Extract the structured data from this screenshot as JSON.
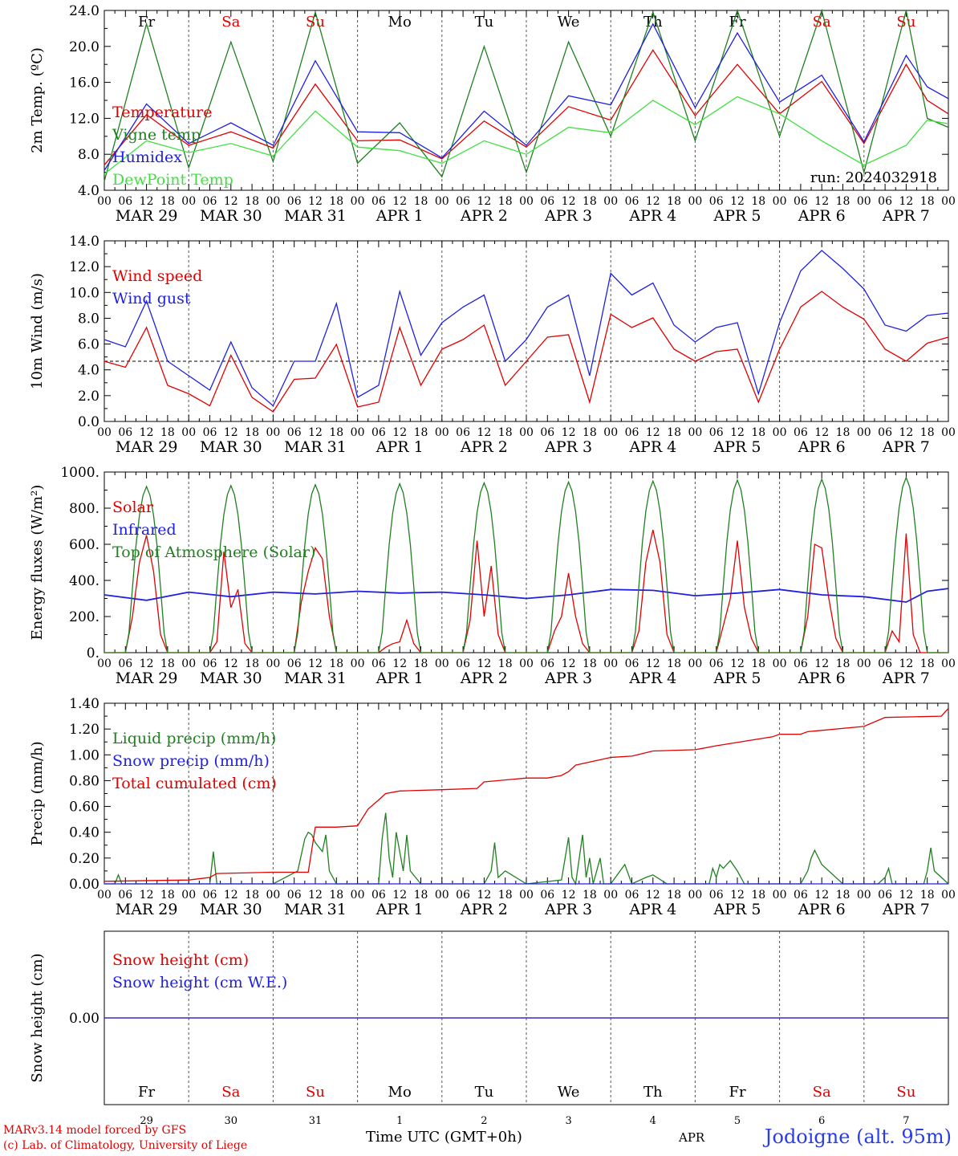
{
  "chart_data": [
    {
      "id": "temp",
      "type": "line",
      "ylabel": "2m Temp. (ºC)",
      "ylim": [
        4.0,
        24.0
      ],
      "yticks": [
        "4.0",
        "8.0",
        "12.0",
        "16.0",
        "20.0",
        "24.0"
      ],
      "x_hours_labels": [
        "00",
        "06",
        "12",
        "18"
      ],
      "date_labels": [
        "MAR 29",
        "MAR 30",
        "MAR 31",
        "APR 1",
        "APR 2",
        "APR 3",
        "APR 4",
        "APR 5",
        "APR 6",
        "APR 7"
      ],
      "days": [
        "Fr",
        "Sa",
        "Su",
        "Mo",
        "Tu",
        "We",
        "Th",
        "Fr",
        "Sa",
        "Su"
      ],
      "annotation": "run: 2024032918",
      "reference_line": null,
      "series": [
        {
          "name": "Temperature",
          "color": "#e00000",
          "x": [
            0,
            12,
            24,
            36,
            48,
            60,
            72,
            84,
            96,
            108,
            120,
            132,
            144,
            156,
            168,
            180,
            192,
            204,
            216,
            228,
            234,
            240
          ],
          "y": [
            6.8,
            12.4,
            9.0,
            10.5,
            8.7,
            15.8,
            9.5,
            9.6,
            7.5,
            11.7,
            8.8,
            13.3,
            11.8,
            19.6,
            12.3,
            18.0,
            12.5,
            16.1,
            9.2,
            18.0,
            14.0,
            12.5
          ]
        },
        {
          "name": "Vigne temp",
          "color": "#208020",
          "x": [
            0,
            12,
            24,
            36,
            48,
            60,
            72,
            84,
            96,
            108,
            120,
            132,
            144,
            156,
            168,
            180,
            192,
            204,
            216,
            228,
            234,
            240
          ],
          "y": [
            5.0,
            22.5,
            6.5,
            20.5,
            7.2,
            23.8,
            7.0,
            11.5,
            5.5,
            20.0,
            6.0,
            20.5,
            10.0,
            23.8,
            9.5,
            24.0,
            10.0,
            24.0,
            6.0,
            24.0,
            12.0,
            11.0
          ]
        },
        {
          "name": "Humidex",
          "color": "#2020e0",
          "x": [
            0,
            12,
            24,
            36,
            48,
            60,
            72,
            84,
            96,
            108,
            120,
            132,
            144,
            156,
            168,
            180,
            192,
            204,
            216,
            228,
            234,
            240
          ],
          "y": [
            6.2,
            13.6,
            9.2,
            11.5,
            9.0,
            18.4,
            10.5,
            10.4,
            7.6,
            12.8,
            9.0,
            14.5,
            13.5,
            22.5,
            13.2,
            21.5,
            13.8,
            16.8,
            9.4,
            19.0,
            15.5,
            14.2
          ]
        },
        {
          "name": "DewPoint Temp",
          "color": "#40e040",
          "x": [
            0,
            12,
            24,
            36,
            48,
            60,
            72,
            84,
            96,
            108,
            120,
            132,
            144,
            156,
            168,
            180,
            192,
            204,
            216,
            228,
            234,
            240
          ],
          "y": [
            5.8,
            9.5,
            8.2,
            9.2,
            7.8,
            12.8,
            8.8,
            8.4,
            7.0,
            9.5,
            8.0,
            11.0,
            10.4,
            14.0,
            11.3,
            14.4,
            12.5,
            9.5,
            6.8,
            9.0,
            11.8,
            11.4
          ]
        }
      ]
    },
    {
      "id": "wind",
      "type": "line",
      "ylabel": "10m Wind (m/s)",
      "ylim": [
        0.0,
        15.0
      ],
      "yticks": [
        "0.0",
        "2.0",
        "4.0",
        "6.0",
        "8.0",
        "10.0",
        "12.0",
        "14.0"
      ],
      "x_hours_labels": [
        "00",
        "06",
        "12",
        "18"
      ],
      "date_labels": [
        "MAR 29",
        "MAR 30",
        "MAR 31",
        "APR 1",
        "APR 2",
        "APR 3",
        "APR 4",
        "APR 5",
        "APR 6",
        "APR 7"
      ],
      "days": [],
      "annotation": "",
      "reference_line": 5.0,
      "series": [
        {
          "name": "Wind speed",
          "color": "#e00000",
          "x": [
            0,
            6,
            12,
            18,
            24,
            30,
            36,
            42,
            48,
            54,
            60,
            66,
            72,
            78,
            84,
            90,
            96,
            102,
            108,
            114,
            120,
            126,
            132,
            138,
            144,
            150,
            156,
            162,
            168,
            174,
            180,
            186,
            192,
            198,
            204,
            210,
            216,
            222,
            228,
            234,
            240
          ],
          "y": [
            5.0,
            4.5,
            7.8,
            3.0,
            2.3,
            1.3,
            5.5,
            2.0,
            0.8,
            3.5,
            3.6,
            6.4,
            1.2,
            1.6,
            7.8,
            3.0,
            6.0,
            6.8,
            8.0,
            3.0,
            5.0,
            7.0,
            7.2,
            1.6,
            8.9,
            7.8,
            8.6,
            6.0,
            5.0,
            5.8,
            6.0,
            1.6,
            6.0,
            9.5,
            10.8,
            9.5,
            8.5,
            6.0,
            5.0,
            6.5,
            7.0
          ]
        },
        {
          "name": "Wind gust",
          "color": "#2020e0",
          "x": [
            0,
            6,
            12,
            18,
            24,
            30,
            36,
            42,
            48,
            54,
            60,
            66,
            72,
            78,
            84,
            90,
            96,
            102,
            108,
            114,
            120,
            126,
            132,
            138,
            144,
            150,
            156,
            162,
            168,
            174,
            180,
            186,
            192,
            198,
            204,
            210,
            216,
            222,
            228,
            234,
            240
          ],
          "y": [
            6.8,
            6.2,
            10.0,
            5.0,
            3.8,
            2.6,
            6.6,
            2.8,
            1.3,
            5.0,
            5.0,
            9.8,
            2.0,
            3.0,
            10.8,
            5.5,
            8.2,
            9.5,
            10.5,
            5.0,
            6.8,
            9.5,
            10.5,
            3.8,
            12.3,
            10.5,
            11.5,
            8.0,
            6.6,
            7.8,
            8.2,
            2.3,
            8.2,
            12.5,
            14.2,
            12.7,
            11.0,
            8.0,
            7.5,
            8.8,
            9.0
          ]
        }
      ]
    },
    {
      "id": "energy",
      "type": "line",
      "ylabel": "Energy fluxes (W/m²)",
      "ylim": [
        0,
        1000
      ],
      "yticks": [
        "0.",
        "200.",
        "400.",
        "600.",
        "800.",
        "1000."
      ],
      "x_hours_labels": [
        "00",
        "06",
        "12",
        "18"
      ],
      "date_labels": [
        "MAR 29",
        "MAR 30",
        "MAR 31",
        "APR 1",
        "APR 2",
        "APR 3",
        "APR 4",
        "APR 5",
        "APR 6",
        "APR 7"
      ],
      "days": [],
      "annotation": "",
      "reference_line": null,
      "series": [
        {
          "name": "Solar",
          "color": "#e00000",
          "x": [
            0,
            6,
            8,
            10,
            12,
            14,
            16,
            18,
            24,
            30,
            32,
            34,
            36,
            38,
            40,
            42,
            48,
            54,
            56,
            58,
            60,
            62,
            64,
            66,
            72,
            78,
            80,
            82,
            84,
            86,
            88,
            90,
            96,
            102,
            104,
            106,
            108,
            110,
            112,
            114,
            120,
            126,
            128,
            130,
            132,
            134,
            136,
            138,
            144,
            150,
            152,
            154,
            156,
            158,
            160,
            162,
            168,
            174,
            176,
            178,
            180,
            182,
            184,
            186,
            192,
            198,
            200,
            202,
            204,
            206,
            208,
            210,
            216,
            222,
            224,
            226,
            228,
            230,
            232,
            234,
            240
          ],
          "y": [
            0,
            0,
            200,
            500,
            650,
            450,
            100,
            0,
            0,
            0,
            60,
            560,
            250,
            350,
            50,
            0,
            0,
            0,
            280,
            450,
            580,
            520,
            200,
            0,
            0,
            0,
            30,
            50,
            60,
            180,
            50,
            0,
            0,
            0,
            180,
            620,
            200,
            480,
            100,
            0,
            0,
            0,
            120,
            200,
            440,
            200,
            50,
            0,
            0,
            0,
            120,
            500,
            680,
            500,
            100,
            0,
            0,
            0,
            150,
            300,
            620,
            250,
            80,
            0,
            0,
            0,
            200,
            600,
            580,
            300,
            80,
            0,
            0,
            0,
            120,
            60,
            660,
            100,
            0,
            0,
            0
          ]
        },
        {
          "name": "Infrared",
          "color": "#2020e0",
          "x": [
            0,
            12,
            24,
            36,
            48,
            60,
            72,
            84,
            96,
            108,
            120,
            132,
            144,
            156,
            168,
            180,
            192,
            204,
            216,
            228,
            234,
            240
          ],
          "y": [
            320,
            290,
            335,
            310,
            335,
            325,
            340,
            330,
            335,
            320,
            300,
            320,
            350,
            345,
            315,
            330,
            350,
            320,
            310,
            280,
            340,
            355
          ]
        },
        {
          "name": "Top of Atmosphere (Solar)",
          "color": "#208020",
          "x": [
            0,
            6,
            7,
            8,
            9,
            10,
            11,
            12,
            13,
            14,
            15,
            16,
            17,
            18,
            24
          ],
          "y": [
            0,
            0,
            110,
            360,
            590,
            760,
            870,
            920,
            870,
            760,
            590,
            360,
            110,
            0,
            0
          ],
          "periodic_days": 10,
          "peaks": [
            920,
            925,
            930,
            935,
            940,
            945,
            950,
            955,
            960,
            970
          ]
        }
      ]
    },
    {
      "id": "precip",
      "type": "line",
      "ylabel": "Precip (mm/h)",
      "ylim": [
        0.0,
        1.4
      ],
      "yticks": [
        "0.00",
        "0.20",
        "0.40",
        "0.60",
        "0.80",
        "1.00",
        "1.20",
        "1.40"
      ],
      "x_hours_labels": [
        "00",
        "06",
        "12",
        "18"
      ],
      "date_labels": [
        "MAR 29",
        "MAR 30",
        "MAR 31",
        "APR 1",
        "APR 2",
        "APR 3",
        "APR 4",
        "APR 5",
        "APR 6",
        "APR 7"
      ],
      "days": [],
      "annotation": "",
      "reference_line": null,
      "series": [
        {
          "name": "Liquid precip (mm/h)",
          "color": "#208020",
          "x": [
            0,
            3,
            4,
            5,
            8,
            24,
            30,
            31,
            32,
            33,
            40,
            48,
            55,
            57,
            58,
            59,
            60,
            62,
            63,
            64,
            66,
            70,
            72,
            78,
            79,
            80,
            81,
            82,
            83,
            85,
            86,
            87,
            90,
            100,
            108,
            110,
            111,
            112,
            114,
            120,
            130,
            132,
            133,
            134,
            136,
            137,
            138,
            139,
            141,
            142,
            144,
            148,
            150,
            154,
            156,
            160,
            168,
            172,
            173,
            174,
            175,
            176,
            178,
            180,
            182,
            192,
            198,
            200,
            201,
            202,
            204,
            210,
            216,
            220,
            222,
            223,
            224,
            226,
            228,
            233,
            234,
            235,
            236,
            240
          ],
          "y": [
            0,
            0,
            0.07,
            0,
            0,
            0,
            0,
            0.25,
            0,
            0,
            0,
            0,
            0.1,
            0.35,
            0.4,
            0.38,
            0.32,
            0.25,
            0.38,
            0.1,
            0,
            0,
            0,
            0,
            0.35,
            0.55,
            0.2,
            0.05,
            0.4,
            0.1,
            0.38,
            0.1,
            0,
            0,
            0,
            0.1,
            0.32,
            0.05,
            0.1,
            0,
            0.03,
            0.36,
            0.05,
            0,
            0.38,
            0.05,
            0.2,
            0,
            0.2,
            0,
            0,
            0.15,
            0,
            0.05,
            0.07,
            0,
            0,
            0,
            0.12,
            0.05,
            0.15,
            0.12,
            0.18,
            0.1,
            0,
            0,
            0,
            0.1,
            0.2,
            0.26,
            0.15,
            0,
            0,
            0,
            0.05,
            0.12,
            0,
            0,
            0,
            0,
            0.1,
            0.28,
            0.1,
            0
          ]
        },
        {
          "name": "Snow precip (mm/h)",
          "color": "#2020e0",
          "x": [
            0,
            240
          ],
          "y": [
            0,
            0
          ]
        },
        {
          "name": "Total cumulated (cm)",
          "color": "#e00000",
          "x": [
            0,
            24,
            30,
            32,
            48,
            58,
            60,
            66,
            72,
            75,
            78,
            80,
            84,
            96,
            106,
            108,
            120,
            126,
            130,
            132,
            134,
            144,
            150,
            156,
            168,
            170,
            174,
            190,
            192,
            198,
            200,
            216,
            222,
            238,
            240
          ],
          "y": [
            0.02,
            0.03,
            0.05,
            0.08,
            0.09,
            0.09,
            0.44,
            0.44,
            0.45,
            0.58,
            0.65,
            0.7,
            0.72,
            0.73,
            0.74,
            0.79,
            0.82,
            0.82,
            0.84,
            0.87,
            0.92,
            0.98,
            0.99,
            1.03,
            1.04,
            1.05,
            1.07,
            1.14,
            1.16,
            1.16,
            1.18,
            1.22,
            1.29,
            1.3,
            1.36
          ]
        }
      ]
    },
    {
      "id": "snow",
      "type": "line",
      "ylabel": "Snow height (cm)",
      "ylim": [
        -1.0,
        1.0
      ],
      "yticks": [
        "0.00"
      ],
      "x_hours_labels": [],
      "date_labels": [
        "29",
        "30",
        "31",
        "1",
        "2",
        "3",
        "4",
        "5",
        "6",
        "7"
      ],
      "days": [
        "Fr",
        "Sa",
        "Su",
        "Mo",
        "Tu",
        "We",
        "Th",
        "Fr",
        "Sa",
        "Su"
      ],
      "annotation": "",
      "reference_line": null,
      "series": [
        {
          "name": "Snow height (cm)",
          "color": "#e00000",
          "x": [
            0,
            240
          ],
          "y": [
            0,
            0
          ]
        },
        {
          "name": "Snow height (cm W.E.)",
          "color": "#2020e0",
          "x": [
            0,
            240
          ],
          "y": [
            0,
            0
          ]
        }
      ]
    }
  ],
  "weekend_days": [
    "Sa",
    "Su"
  ],
  "footer": {
    "credit_line1": "MARv3.14 model forced by GFS",
    "credit_line2": "(c) Lab. of Climatology, University of Liege",
    "time_label": "Time UTC (GMT+0h)",
    "month": "APR",
    "station": "Jodoigne (alt. 95m)"
  }
}
